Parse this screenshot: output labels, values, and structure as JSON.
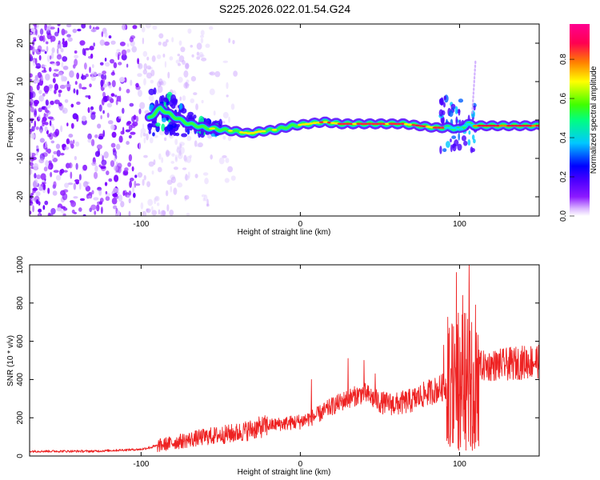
{
  "title": "S225.2026.022.01.54.G24",
  "chart_data": [
    {
      "type": "heatmap",
      "name": "spectrogram",
      "xlabel": "Height of straight line (km)",
      "ylabel": "Frequency (Hz)",
      "xlim": [
        -170,
        150
      ],
      "ylim": [
        -25,
        25
      ],
      "xticks": [
        -100,
        0,
        100
      ],
      "yticks": [
        -20,
        -10,
        0,
        10,
        20
      ],
      "colorbar": {
        "label": "Normalized spectral amplitude",
        "range": [
          0,
          0.98
        ],
        "ticks": [
          0.0,
          0.2,
          0.4,
          0.6,
          0.8
        ],
        "tick_labels": [
          "0.0",
          "0.2",
          "0.4",
          "0.6",
          "0.8"
        ],
        "colormap": [
          "#ffffff",
          "#d9b3ff",
          "#8c1aff",
          "#5000ff",
          "#0000ff",
          "#00c8ff",
          "#00ff80",
          "#40ff00",
          "#ffff00",
          "#ff8000",
          "#ff0050",
          "#ff0090"
        ]
      },
      "ridge_frequency": {
        "heights_km": [
          -95,
          -88,
          -80,
          -70,
          -60,
          -50,
          -40,
          -32,
          -25,
          -15,
          -5,
          5,
          15,
          25,
          35,
          45,
          55,
          65,
          75,
          85,
          95,
          100,
          105,
          110,
          120,
          130,
          140,
          150
        ],
        "freq_hz": [
          0.5,
          3.0,
          1.0,
          -1.0,
          -2.0,
          -2.5,
          -3.0,
          -3.5,
          -3.0,
          -2.5,
          -1.5,
          -1.0,
          -0.5,
          -1.0,
          -1.0,
          -1.0,
          -1.0,
          -1.0,
          -1.5,
          -2.0,
          -2.0,
          -2.5,
          -1.0,
          -1.5,
          -1.5,
          -1.5,
          -1.5,
          -1.5
        ]
      }
    },
    {
      "type": "line",
      "name": "snr",
      "xlabel": "Height of straight line (km)",
      "ylabel": "SNR (10 * v/v)",
      "xlim": [
        -170,
        150
      ],
      "ylim": [
        0,
        1000
      ],
      "xticks": [
        -100,
        0,
        100
      ],
      "yticks": [
        0,
        200,
        400,
        600,
        800,
        1000
      ],
      "color": "#ee2222",
      "envelope": {
        "x": [
          -170,
          -130,
          -100,
          -80,
          -60,
          -40,
          -20,
          0,
          10,
          20,
          30,
          40,
          50,
          60,
          70,
          80,
          90,
          95,
          100,
          105,
          110,
          115,
          130,
          150
        ],
        "y": [
          25,
          25,
          35,
          70,
          100,
          120,
          160,
          180,
          210,
          260,
          300,
          330,
          280,
          270,
          290,
          330,
          360,
          380,
          450,
          500,
          480,
          470,
          480,
          500
        ]
      },
      "spikes": [
        {
          "x": 7,
          "y": 400
        },
        {
          "x": 30,
          "y": 510
        },
        {
          "x": 40,
          "y": 500
        },
        {
          "x": 47,
          "y": 430
        },
        {
          "x": 90,
          "y": 580
        },
        {
          "x": 98,
          "y": 960
        },
        {
          "x": 102,
          "y": 840
        },
        {
          "x": 106,
          "y": 1000
        },
        {
          "x": 110,
          "y": 790
        }
      ],
      "dips": [
        {
          "x": 99,
          "y": 40
        },
        {
          "x": 104,
          "y": 30
        },
        {
          "x": 107,
          "y": 50
        },
        {
          "x": 109,
          "y": 120
        }
      ]
    }
  ]
}
